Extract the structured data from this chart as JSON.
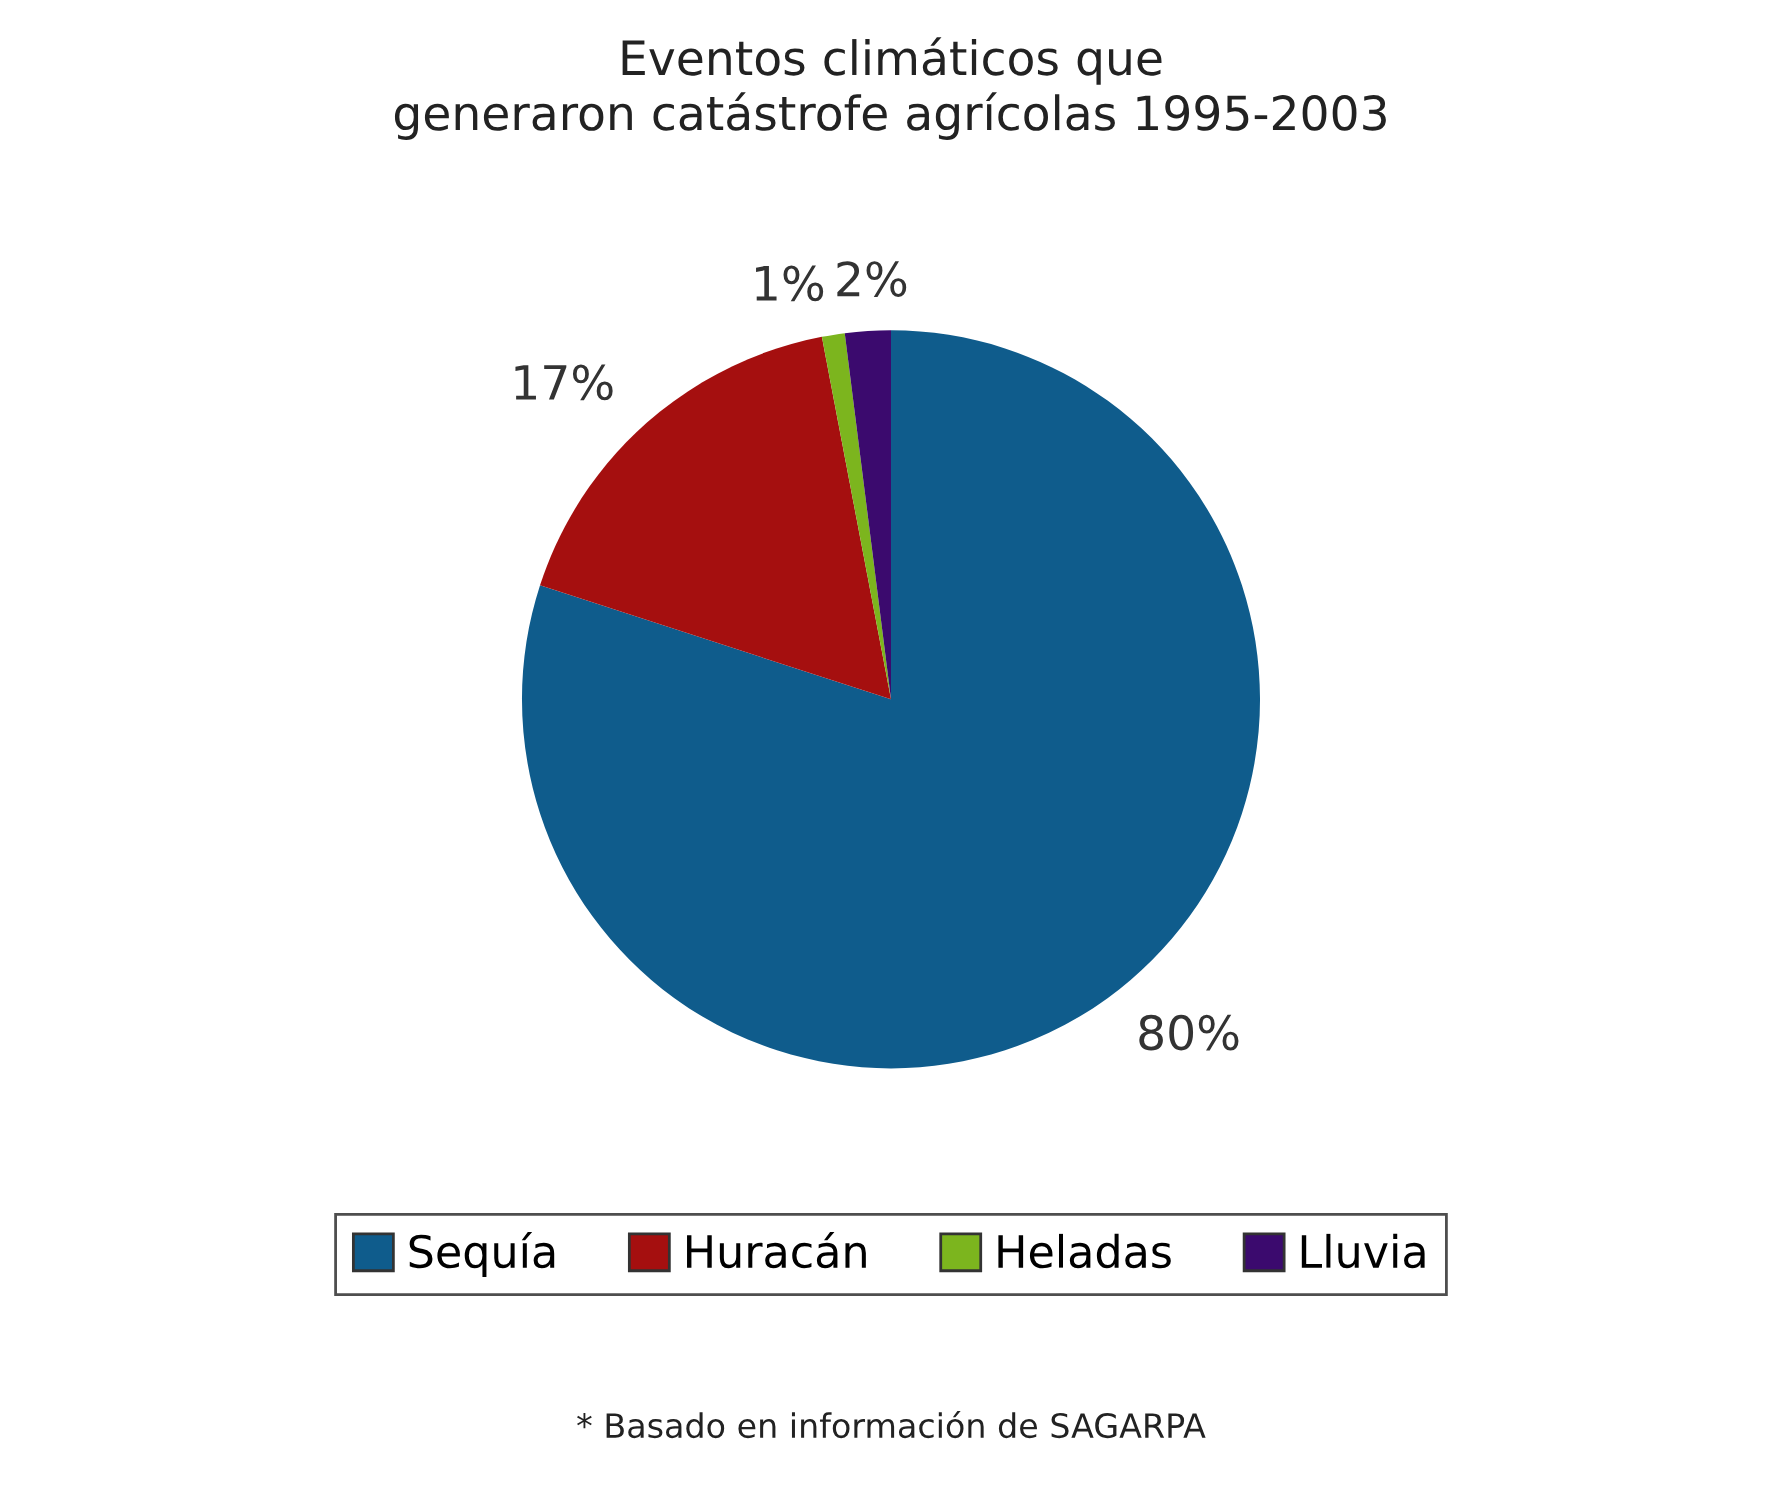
{
  "chart_data": {
    "type": "pie",
    "title": "Eventos climáticos que\ngeneraron catástrofe agrícolas 1995-2003",
    "categories": [
      "Sequía",
      "Huracán",
      "Heladas",
      "Lluvia"
    ],
    "values": [
      80,
      17,
      1,
      2
    ],
    "colors": [
      "#0f5c8c",
      "#a50f0f",
      "#7cb51e",
      "#3b0a6e"
    ],
    "value_labels": [
      "80%",
      "17%",
      "1%",
      "2%"
    ],
    "legend": "bottom",
    "annotations": [
      "* Basado en información de SAGARPA"
    ]
  }
}
